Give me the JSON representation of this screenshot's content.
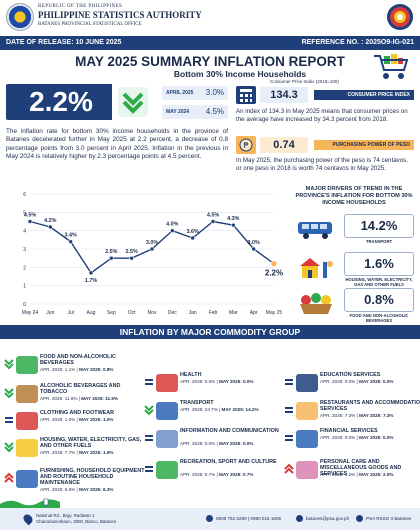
{
  "header": {
    "line1": "REPUBLIC OF THE PHILIPPINES",
    "agency": "PHILIPPINE STATISTICS AUTHORITY",
    "office": "BATANES PROVINCIAL STATISTICAL OFFICE"
  },
  "band": {
    "release": "DATE OF RELEASE: 10 JUNE 2025",
    "reference": "REFERENCE NO. : 2025O9-IG-021"
  },
  "title": "MAY 2025 SUMMARY INFLATION REPORT",
  "subtitle": "Bottom 30% Income Households",
  "subnote": "Consumer Price Index (2018=100)",
  "headline": {
    "rate": "2.2%",
    "april_label": "APRIL 2025",
    "april_value": "3.0%",
    "may2024_label": "MAY 2024",
    "may2024_value": "4.5%",
    "paragraph": "The inflation rate for bottom 30% income households in the province of Batanes decelerated further in May 2025 at 2.2 percent, a decrease of 0.8 percentage points from 3.0 percent in April 2025. Inflation in the previous in May 2024 is relatively higher by 2.3 percentage points at 4.5 percent."
  },
  "cpi": {
    "value": "134.3",
    "label": "CONSUMER PRICE INDEX",
    "text": "An index of 134.3 in May 2025 means that consumer prices on the average have increased by 34.3 percent from 2018."
  },
  "ppp": {
    "value": "0.74",
    "label": "PURCHASING POWER OF PESO",
    "text": "In May 2025, the purchasing power of the peso is 74 centavos, or one peso in 2018 is worth 74 centavos in May 2025."
  },
  "chart_data": {
    "type": "line",
    "categories": [
      "May 24",
      "Jun",
      "Jul",
      "Aug",
      "Sep",
      "Oct",
      "Nov",
      "Dec",
      "Jan",
      "Feb",
      "Mar",
      "Apr",
      "May 25"
    ],
    "values": [
      4.5,
      4.2,
      3.4,
      1.7,
      2.5,
      2.5,
      3.0,
      4.0,
      3.6,
      4.5,
      4.3,
      3.0,
      2.2
    ],
    "labels": [
      "4.5%",
      "4.2%",
      "3.4%",
      "1.7%",
      "2.5%",
      "2.5%",
      "3.0%",
      "4.0%",
      "3.6%",
      "4.5%",
      "4.3%",
      "3.0%",
      "2.2%"
    ],
    "ylim": [
      0,
      6
    ],
    "yticks": [
      "0",
      "1",
      "2",
      "3",
      "4",
      "5",
      "6"
    ],
    "grid": true,
    "title": "",
    "xlabel": "",
    "ylabel": ""
  },
  "drivers": {
    "title": "MAJOR DRIVERS OF TREND IN THE PROVINCE'S INFLATION FOR BOTTOM 30% INCOME HOUSEHOLDS",
    "items": [
      {
        "value": "14.2%",
        "label": "TRANSPORT"
      },
      {
        "value": "1.6%",
        "label": "HOUSING, WATER, ELECTRICITY, GAS AND OTHER FUELS"
      },
      {
        "value": "0.8%",
        "label": "FOOD AND NON-ALCOHOLIC BEVERAGES"
      }
    ]
  },
  "section_title": "INFLATION BY MAJOR COMMODITY GROUP",
  "commodities": [
    {
      "name": "FOOD AND NON-ALCOHOLIC BEVERAGES",
      "apr": "APR. 2025: 1.1%",
      "may": "MAY 2025: 0.8%"
    },
    {
      "name": "ALCOHOLIC BEVERAGES AND TOBACCO",
      "apr": "APR. 2025: 11.6%",
      "may": "MAY 2025: 11.5%"
    },
    {
      "name": "CLOTHING AND FOOTWEAR",
      "apr": "APR. 2025: 1.0%",
      "may": "MAY 2025: 1.0%"
    },
    {
      "name": "HOUSING, WATER, ELECTRICITY, GAS, AND OTHER FUELS",
      "apr": "APR. 2025: 7.7%",
      "may": "MAY 2025: 1.6%"
    },
    {
      "name": "FURNISHING, HOUSEHOLD EQUIPMENT AND ROUTINE HOUSEHOLD MAINTENANCE",
      "apr": "APR. 2025: 5.6%",
      "may": "MAY 2025: 6.3%"
    },
    {
      "name": "HEALTH",
      "apr": "APR. 2025: 0.0%",
      "may": "MAY 2025: 0.0%"
    },
    {
      "name": "TRANSPORT",
      "apr": "APR. 2025: 24.7%",
      "may": "MAY 2025: 14.2%"
    },
    {
      "name": "INFORMATION AND COMMUNICATION",
      "apr": "APR. 2025: 0.0%",
      "may": "MAY 2025: 0.0%"
    },
    {
      "name": "RECREATION, SPORT AND CULTURE",
      "apr": "APR. 2025: 0.7%",
      "may": "MAY 2025: 0.7%"
    },
    {
      "name": "EDUCATION SERVICES",
      "apr": "APR. 2025: 0.0%",
      "may": "MAY 2025: 0.0%"
    },
    {
      "name": "RESTAURANTS AND ACCOMMODATION SERVICES",
      "apr": "APR. 2025: 7.3%",
      "may": "MAY 2025: 7.3%"
    },
    {
      "name": "FINANCIAL SERVICES",
      "apr": "APR. 2025: 0.0%",
      "may": "MAY 2025: 0.0%"
    },
    {
      "name": "PERSONAL CARE AND MISCELLANEOUS GOODS AND SERVICES",
      "apr": "APR. 2025: 1.2%",
      "may": "MAY 2025: 2.0%"
    }
  ],
  "footer": {
    "address_1": "National Rd., Brgy. Radiwan 1",
    "address_2": "Chanarianeshaun, 3900, Basco, Batanes",
    "phone": "0908 762 8289 | 0990 016 1606",
    "email": "batanes@psa.gov.ph",
    "fb": "PSA RSSO II Batanes"
  },
  "colors": {
    "navy": "#1f3f7a",
    "accent_orange": "#f7b55a",
    "green_arrow": "#2eaa4a",
    "red_arrow": "#d93b3b"
  }
}
